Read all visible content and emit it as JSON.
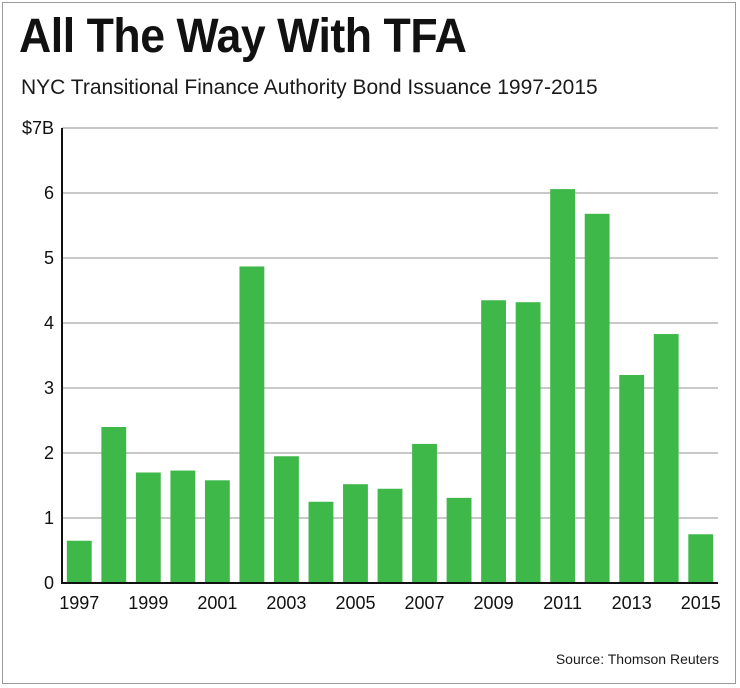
{
  "chart_data": {
    "type": "bar",
    "title": "All The Way With TFA",
    "subtitle": "NYC Transitional Finance Authority Bond Issuance 1997-2015",
    "source": "Source: Thomson Reuters",
    "categories": [
      "1997",
      "1998",
      "1999",
      "2000",
      "2001",
      "2002",
      "2003",
      "2004",
      "2005",
      "2006",
      "2007",
      "2008",
      "2009",
      "2010",
      "2011",
      "2012",
      "2013",
      "2014",
      "2015"
    ],
    "values": [
      0.65,
      2.4,
      1.7,
      1.73,
      1.58,
      4.87,
      1.95,
      1.25,
      1.52,
      1.45,
      2.14,
      1.31,
      4.35,
      4.32,
      6.06,
      5.68,
      3.2,
      3.83,
      0.75
    ],
    "x_tick_labels": [
      "1997",
      "1999",
      "2001",
      "2003",
      "2005",
      "2007",
      "2009",
      "2011",
      "2013",
      "2015"
    ],
    "y_ticks": [
      0,
      1,
      2,
      3,
      4,
      5,
      6,
      7
    ],
    "y_tick_labels": [
      "0",
      "1",
      "2",
      "3",
      "4",
      "5",
      "6",
      "$7B"
    ],
    "ylim": [
      0,
      7
    ],
    "xlabel": "",
    "ylabel": "",
    "grid": true,
    "bar_color": "#3fb84a",
    "grid_color": "#a9a9a9",
    "axis_color": "#111111"
  }
}
